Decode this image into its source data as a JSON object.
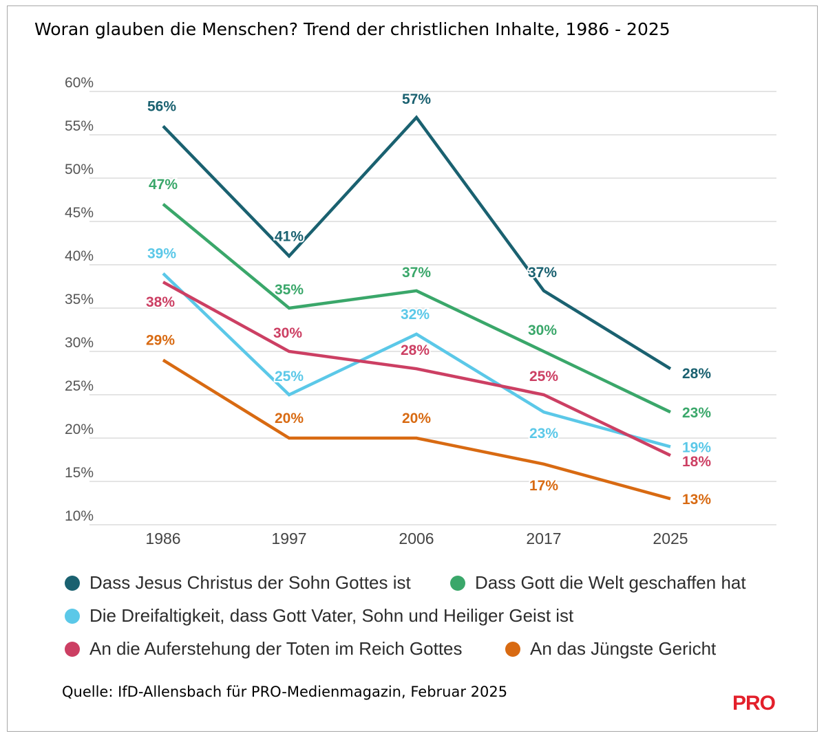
{
  "title": "Woran glauben die Menschen? Trend der christlichen Inhalte, 1986 - 2025",
  "source": "Quelle: IfD-Allensbach für PRO-Medienmagazin, Februar 2025",
  "brand": "PRO",
  "brand_color": "#e3202b",
  "chart_data": {
    "type": "line",
    "x": [
      "1986",
      "1997",
      "2006",
      "2017",
      "2025"
    ],
    "ylim": [
      10,
      60
    ],
    "yticks": [
      10,
      15,
      20,
      25,
      30,
      35,
      40,
      45,
      50,
      55,
      60
    ],
    "ytick_labels": [
      "10%",
      "15%",
      "20%",
      "25%",
      "30%",
      "35%",
      "40%",
      "45%",
      "50%",
      "55%",
      "60%"
    ],
    "grid": true,
    "legend_position": "bottom",
    "series": [
      {
        "name": "Dass Jesus Christus der Sohn Gottes ist",
        "color": "#1a6170",
        "values": [
          56,
          41,
          57,
          37,
          28
        ],
        "labels": [
          "56%",
          "41%",
          "57%",
          "37%",
          "28%"
        ]
      },
      {
        "name": "Dass Gott die Welt geschaffen hat",
        "color": "#3aa76a",
        "values": [
          47,
          35,
          37,
          30,
          23
        ],
        "labels": [
          "47%",
          "35%",
          "37%",
          "30%",
          "23%"
        ]
      },
      {
        "name": "Die Dreifaltigkeit, dass Gott Vater, Sohn und Heiliger Geist ist",
        "color": "#5bc8e8",
        "values": [
          39,
          25,
          32,
          23,
          19
        ],
        "labels": [
          "39%",
          "25%",
          "32%",
          "23%",
          "19%"
        ]
      },
      {
        "name": "An die Auferstehung der Toten im Reich Gottes",
        "color": "#cc3f63",
        "values": [
          38,
          30,
          28,
          25,
          18
        ],
        "labels": [
          "38%",
          "30%",
          "28%",
          "25%",
          "18%"
        ]
      },
      {
        "name": "An das Jüngste Gericht",
        "color": "#d86a12",
        "values": [
          29,
          20,
          20,
          17,
          13
        ],
        "labels": [
          "29%",
          "20%",
          "20%",
          "17%",
          "13%"
        ]
      }
    ]
  }
}
